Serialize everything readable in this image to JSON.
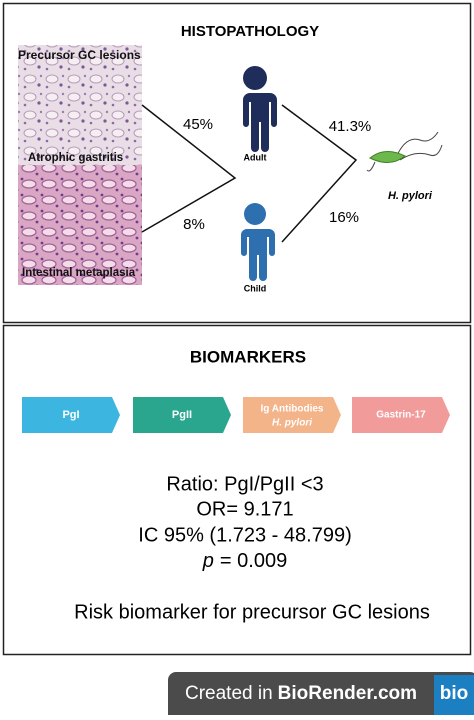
{
  "histopathology": {
    "title": "HISTOPATHOLOGY",
    "image_labels": [
      "Precursor GC  lesions",
      "Atrophic gastritis",
      "Intestinal metaplasia"
    ],
    "percentages": [
      "45%",
      "8%",
      "41.3%",
      "16%"
    ],
    "adult": "Adult",
    "child": "Child",
    "bacterium": "H. pylori"
  },
  "biomarkers": {
    "title": "BIOMARKERS",
    "pills": [
      "PgI",
      "PgII",
      "Ig Antibodies",
      "H. pylori",
      "Gastrin-17"
    ],
    "ratio": "Ratio: PgI/PgII <3",
    "or": "OR= 9.171",
    "ic": "IC 95% (1.723 - 48.799)",
    "p_symbol": "p",
    "p_value": "= 0.009",
    "conclusion": "Risk biomarker for precursor GC lesions"
  },
  "footer": {
    "created": "Created in",
    "brand": "BioRender.com",
    "logo": "bio"
  }
}
